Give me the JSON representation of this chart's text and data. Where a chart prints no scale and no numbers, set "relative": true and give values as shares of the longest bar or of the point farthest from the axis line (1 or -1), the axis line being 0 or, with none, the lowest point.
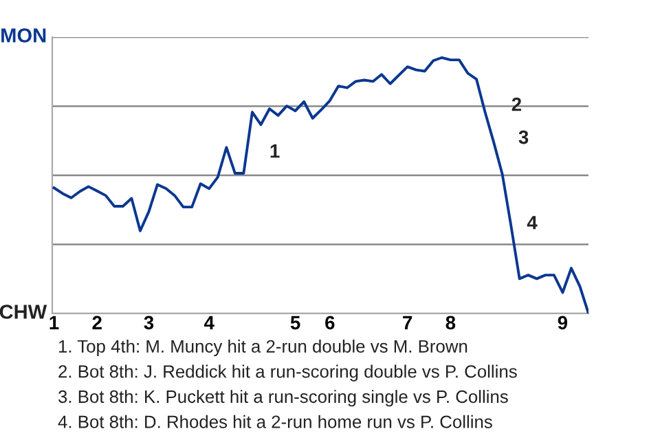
{
  "chart_data": {
    "type": "line",
    "relative": true,
    "categories": [
      "1",
      null,
      null,
      null,
      null,
      "2",
      null,
      null,
      null,
      null,
      null,
      "3",
      null,
      null,
      null,
      null,
      null,
      null,
      "4",
      null,
      null,
      null,
      null,
      null,
      null,
      null,
      null,
      null,
      "5",
      null,
      null,
      null,
      "6",
      null,
      null,
      null,
      null,
      null,
      null,
      null,
      null,
      "7",
      null,
      null,
      null,
      null,
      "8",
      null,
      null,
      null,
      null,
      null,
      null,
      null,
      null,
      null,
      null,
      null,
      null,
      "9",
      null,
      null,
      null
    ],
    "grid": "y",
    "legend": false,
    "marker": "none",
    "line_style": "solid",
    "series": [
      {
        "color": "#0a3791",
        "values": [
          0.491,
          0.469,
          0.452,
          0.477,
          0.496,
          0.479,
          0.461,
          0.419,
          0.419,
          0.45,
          0.323,
          0.398,
          0.504,
          0.488,
          0.461,
          0.416,
          0.416,
          0.507,
          0.488,
          0.533,
          0.649,
          0.548,
          0.548,
          0.787,
          0.738,
          0.8,
          0.774,
          0.811,
          0.792,
          0.828,
          0.763,
          0.796,
          0.832,
          0.889,
          0.882,
          0.907,
          0.912,
          0.907,
          0.934,
          0.898,
          0.931,
          0.964,
          0.952,
          0.947,
          0.988,
          1,
          0.991,
          0.991,
          0.939,
          0.916,
          0.787,
          0.67,
          0.545,
          0.346,
          0.136,
          0.15,
          0.136,
          0.15,
          0.15,
          0.082,
          0.177,
          0.106,
          0
        ],
        "name": null
      }
    ],
    "annotations": [
      "MON",
      "CHW",
      "1",
      "2",
      "3",
      "4",
      "1. Top 4th: M. Muncy hit a 2-run double vs M. Brown",
      "2. Bot 8th: J. Reddick hit a run-scoring double vs P. Collins",
      "3. Bot 8th: K. Puckett hit a run-scoring single vs P. Collins",
      "4. Bot 8th: D. Rhodes hit a 2-run home run vs P. Collins"
    ]
  }
}
